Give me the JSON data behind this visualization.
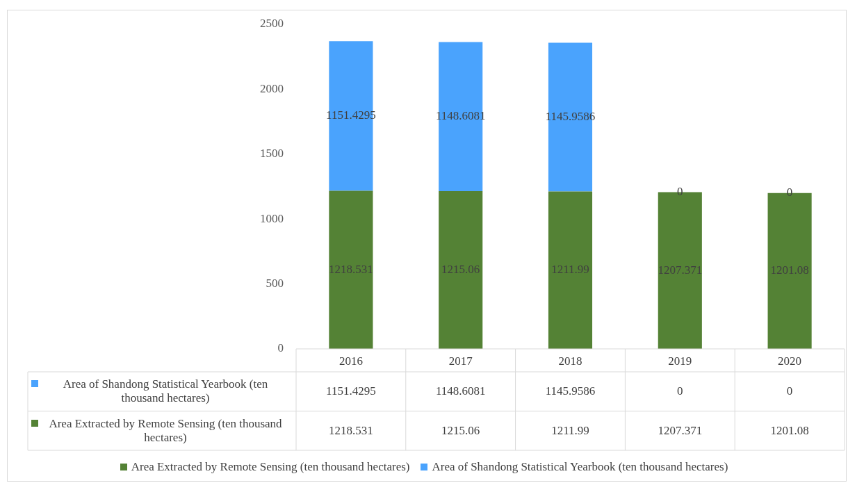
{
  "chart_data": {
    "type": "bar",
    "stacked": true,
    "categories": [
      "2016",
      "2017",
      "2018",
      "2019",
      "2020"
    ],
    "series": [
      {
        "name": "Area Extracted by Remote Sensing (ten thousand hectares)",
        "color": "#548235",
        "values": [
          1218.531,
          1215.06,
          1211.99,
          1207.371,
          1201.08
        ],
        "value_labels": [
          "1218.531",
          "1215.06",
          "1211.99",
          "1207.371",
          "1201.08"
        ]
      },
      {
        "name": "Area of Shandong Statistical Yearbook (ten thousand hectares)",
        "color": "#4aa3fd",
        "values": [
          1151.4295,
          1148.6081,
          1145.9586,
          0,
          0
        ],
        "value_labels": [
          "1151.4295",
          "1148.6081",
          "1145.9586",
          "0",
          "0"
        ]
      }
    ],
    "annotations": [
      "1151.4295",
      "1148.6081",
      "1145.9586",
      "0",
      "0",
      "1218.531",
      "1215.06",
      "1211.99",
      "1207.371",
      "1201.08"
    ],
    "ylim": [
      0,
      2500
    ],
    "yticks": [
      0,
      500,
      1000,
      1500,
      2000,
      2500
    ],
    "grid": false,
    "legend": "bottom"
  }
}
